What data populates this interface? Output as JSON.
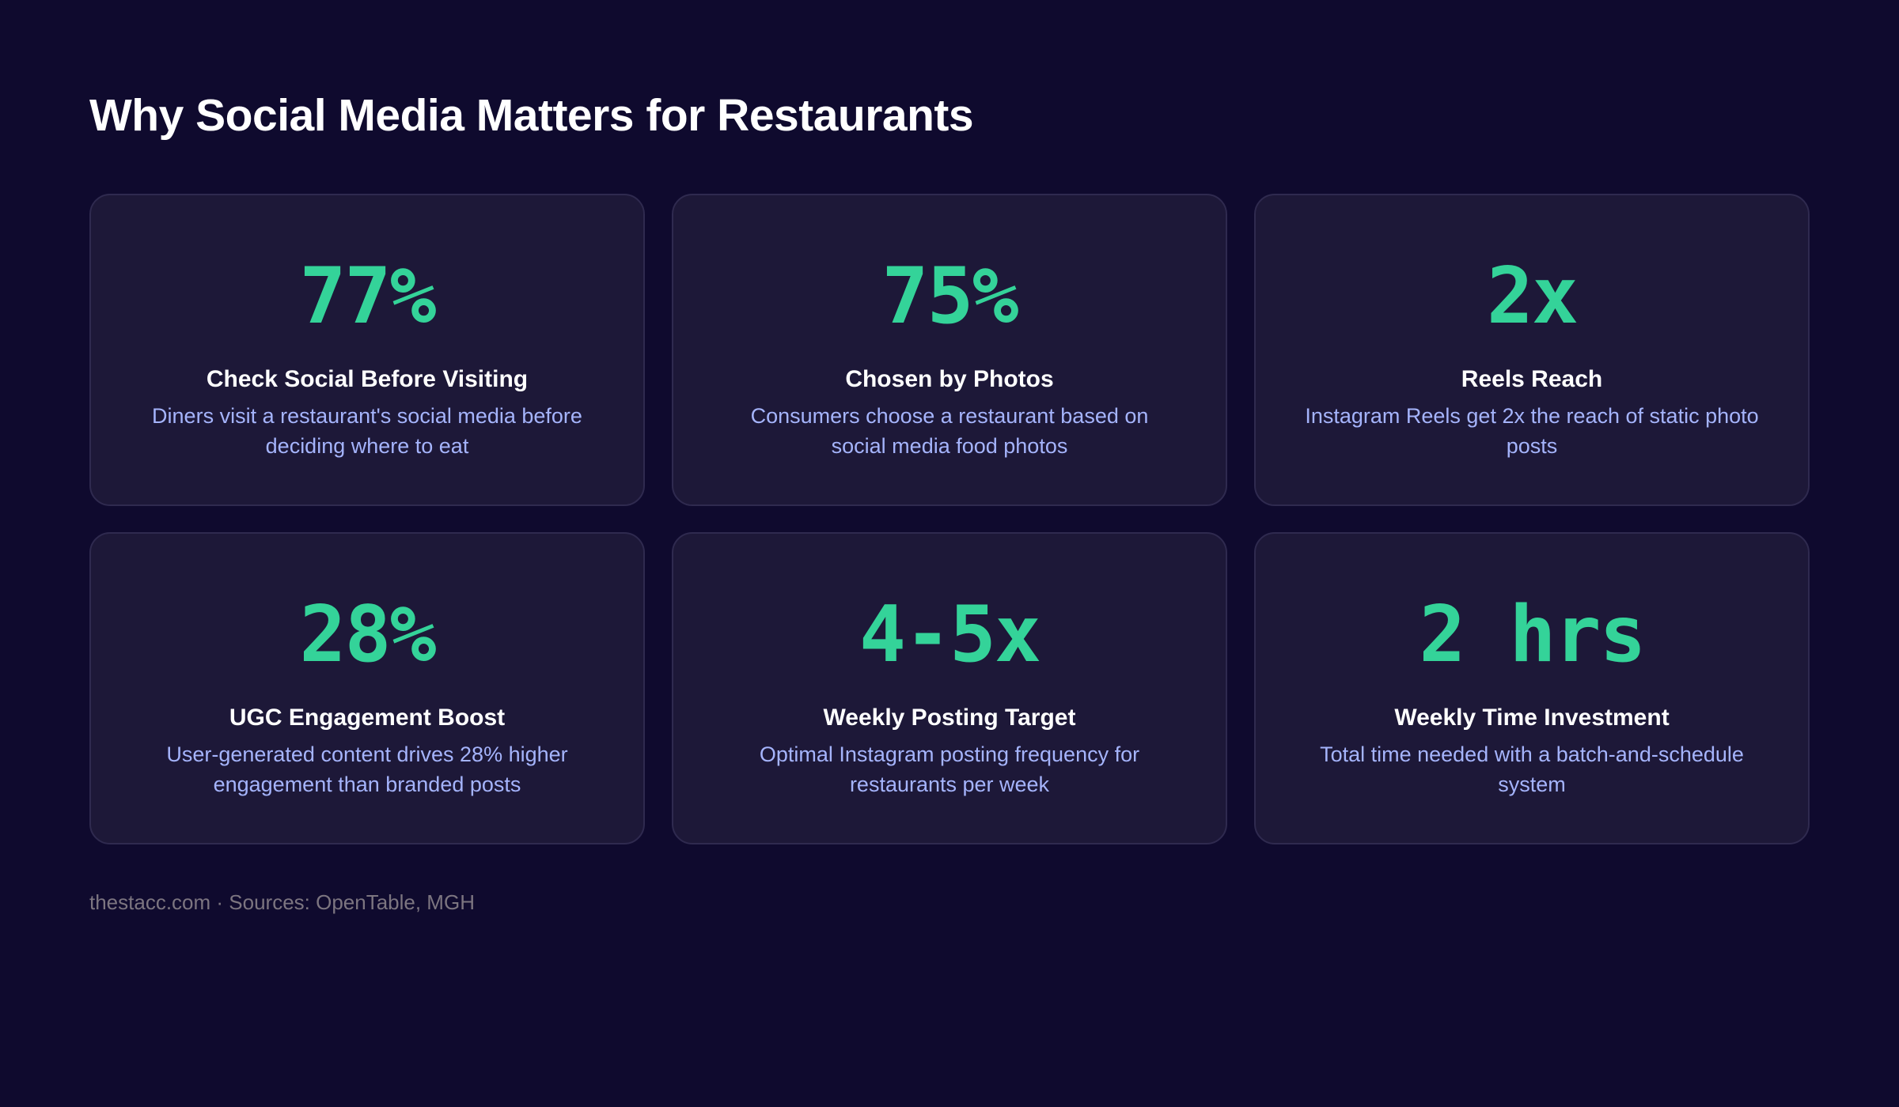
{
  "page": {
    "title": "Why Social Media Matters for Restaurants",
    "footer": "thestacc.com · Sources: OpenTable, MGH"
  },
  "colors": {
    "background": "#0f0a2e",
    "card_background": "#1d1838",
    "card_border": "#2f2a4f",
    "accent_stat": "#34d399",
    "title_text": "#ffffff",
    "description_text": "#a5b4fc",
    "footer_text": "#7c7580"
  },
  "stats": [
    {
      "value": "77%",
      "title": "Check Social Before Visiting",
      "description": "Diners visit a restaurant's social media before deciding where to eat"
    },
    {
      "value": "75%",
      "title": "Chosen by Photos",
      "description": "Consumers choose a restaurant based on social media food photos"
    },
    {
      "value": "2x",
      "title": "Reels Reach",
      "description": "Instagram Reels get 2x the reach of static photo posts"
    },
    {
      "value": "28%",
      "title": "UGC Engagement Boost",
      "description": "User-generated content drives 28% higher engagement than branded posts"
    },
    {
      "value": "4-5x",
      "title": "Weekly Posting Target",
      "description": "Optimal Instagram posting frequency for restaurants per week"
    },
    {
      "value": "2 hrs",
      "title": "Weekly Time Investment",
      "description": "Total time needed with a batch-and-schedule system"
    }
  ]
}
